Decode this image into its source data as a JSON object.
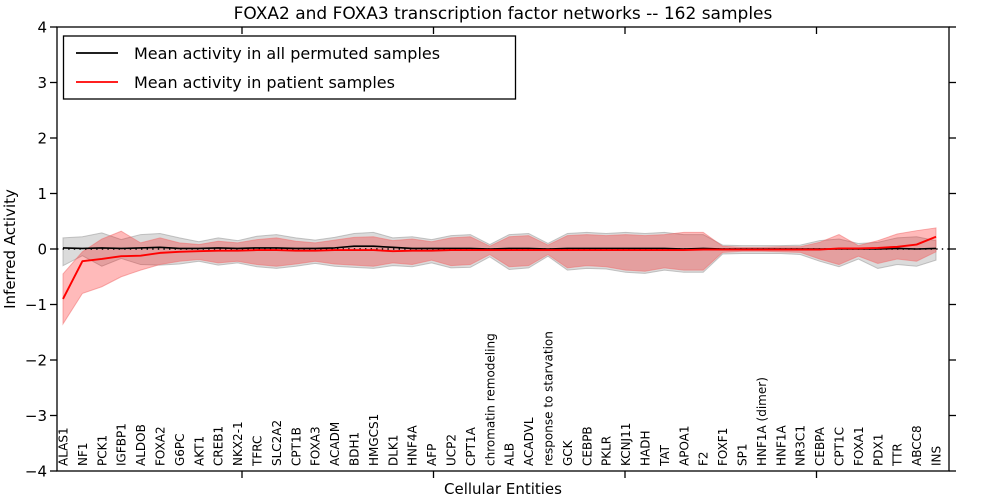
{
  "chart_data": {
    "type": "line",
    "title": "FOXA2 and FOXA3 transcription factor networks -- 162 samples",
    "xlabel": "Cellular Entities",
    "ylabel": "Inferred Activity",
    "ylim": [
      -4,
      4
    ],
    "yticks": [
      4,
      3,
      2,
      1,
      0,
      -1,
      -2,
      -3,
      -4
    ],
    "grid": false,
    "legend_position": "upper left",
    "zero_line": {
      "y": 0,
      "style": "dotted",
      "color": "#000000"
    },
    "categories": [
      "ALAS1",
      "NF1",
      "PCK1",
      "IGFBP1",
      "ALDOB",
      "FOXA2",
      "G6PC",
      "AKT1",
      "CREB1",
      "NKX2-1",
      "TFRC",
      "SLC2A2",
      "CPT1B",
      "FOXA3",
      "ACADM",
      "BDH1",
      "HMGCS1",
      "DLK1",
      "HNF4A",
      "AFP",
      "UCP2",
      "CPT1A",
      "chromatin remodeling",
      "ALB",
      "ACADVL",
      "response to starvation",
      "GCK",
      "CEBPB",
      "PKLR",
      "KCNJ11",
      "HADH",
      "TAT",
      "APOA1",
      "F2",
      "FOXF1",
      "SP1",
      "HNF1A (dimer)",
      "HNF1A",
      "NR3C1",
      "CEBPA",
      "CPT1C",
      "FOXA1",
      "PDX1",
      "TTR",
      "ABCC8",
      "INS"
    ],
    "series": [
      {
        "name": "Mean activity in all permuted samples",
        "color": "#000000",
        "band_color": "#000000",
        "band_opacity": 0.14,
        "band_edge": "#999999",
        "values": [
          0.02,
          0.01,
          0.02,
          0.01,
          0.02,
          0.03,
          0.01,
          0.01,
          0.02,
          0.01,
          0.02,
          0.02,
          0.01,
          0.01,
          0.02,
          0.05,
          0.05,
          0.03,
          0.01,
          0.01,
          0.01,
          0.01,
          0.0,
          0.01,
          0.01,
          0.0,
          0.01,
          0.01,
          0.01,
          0.01,
          0.01,
          0.01,
          0.0,
          0.01,
          0.0,
          0.0,
          0.0,
          0.0,
          0.0,
          0.0,
          0.0,
          0.0,
          0.0,
          0.01,
          0.0,
          0.01
        ],
        "band_lower": [
          -0.3,
          -0.12,
          -0.31,
          -0.17,
          -0.28,
          -0.29,
          -0.27,
          -0.22,
          -0.29,
          -0.25,
          -0.32,
          -0.35,
          -0.31,
          -0.26,
          -0.31,
          -0.33,
          -0.35,
          -0.3,
          -0.32,
          -0.25,
          -0.34,
          -0.33,
          -0.14,
          -0.37,
          -0.34,
          -0.13,
          -0.38,
          -0.35,
          -0.36,
          -0.42,
          -0.44,
          -0.38,
          -0.42,
          -0.42,
          -0.09,
          -0.08,
          -0.08,
          -0.08,
          -0.1,
          -0.22,
          -0.32,
          -0.18,
          -0.35,
          -0.28,
          -0.31,
          -0.2
        ],
        "band_upper": [
          0.2,
          0.22,
          0.29,
          0.17,
          0.26,
          0.28,
          0.2,
          0.13,
          0.2,
          0.15,
          0.23,
          0.26,
          0.2,
          0.16,
          0.21,
          0.28,
          0.3,
          0.2,
          0.22,
          0.17,
          0.24,
          0.26,
          0.08,
          0.26,
          0.28,
          0.1,
          0.28,
          0.3,
          0.28,
          0.3,
          0.28,
          0.3,
          0.26,
          0.26,
          0.07,
          0.06,
          0.06,
          0.06,
          0.07,
          0.15,
          0.18,
          0.1,
          0.12,
          0.2,
          0.22,
          0.15
        ]
      },
      {
        "name": "Mean activity in patient samples",
        "color": "#ff0000",
        "band_color": "#ff0000",
        "band_opacity": 0.27,
        "band_edge": "#f07070",
        "values": [
          -0.9,
          -0.22,
          -0.18,
          -0.13,
          -0.12,
          -0.07,
          -0.05,
          -0.04,
          -0.03,
          -0.03,
          -0.02,
          -0.02,
          -0.03,
          -0.03,
          -0.02,
          -0.02,
          -0.02,
          -0.04,
          -0.03,
          -0.03,
          -0.02,
          -0.02,
          -0.02,
          -0.02,
          -0.02,
          -0.02,
          -0.02,
          -0.02,
          -0.02,
          -0.02,
          -0.02,
          -0.02,
          -0.02,
          -0.01,
          -0.01,
          -0.01,
          -0.01,
          -0.01,
          -0.01,
          -0.01,
          0.01,
          0.01,
          0.02,
          0.04,
          0.08,
          0.22
        ],
        "band_lower": [
          -1.35,
          -0.8,
          -0.68,
          -0.5,
          -0.38,
          -0.28,
          -0.22,
          -0.19,
          -0.25,
          -0.22,
          -0.28,
          -0.31,
          -0.27,
          -0.22,
          -0.27,
          -0.29,
          -0.31,
          -0.25,
          -0.28,
          -0.2,
          -0.3,
          -0.28,
          -0.1,
          -0.32,
          -0.3,
          -0.1,
          -0.34,
          -0.3,
          -0.32,
          -0.38,
          -0.4,
          -0.34,
          -0.38,
          -0.38,
          -0.06,
          -0.04,
          -0.04,
          -0.05,
          -0.06,
          -0.18,
          -0.28,
          -0.13,
          -0.26,
          -0.18,
          -0.22,
          -0.05
        ],
        "band_upper": [
          -0.45,
          -0.05,
          0.18,
          0.32,
          0.11,
          0.2,
          0.11,
          0.08,
          0.14,
          0.11,
          0.17,
          0.2,
          0.14,
          0.11,
          0.16,
          0.21,
          0.22,
          0.15,
          0.18,
          0.13,
          0.2,
          0.22,
          0.05,
          0.22,
          0.24,
          0.07,
          0.24,
          0.26,
          0.24,
          0.26,
          0.24,
          0.26,
          0.3,
          0.3,
          0.05,
          0.03,
          0.03,
          0.04,
          0.04,
          0.12,
          0.26,
          0.06,
          0.15,
          0.27,
          0.33,
          0.38
        ]
      }
    ]
  }
}
